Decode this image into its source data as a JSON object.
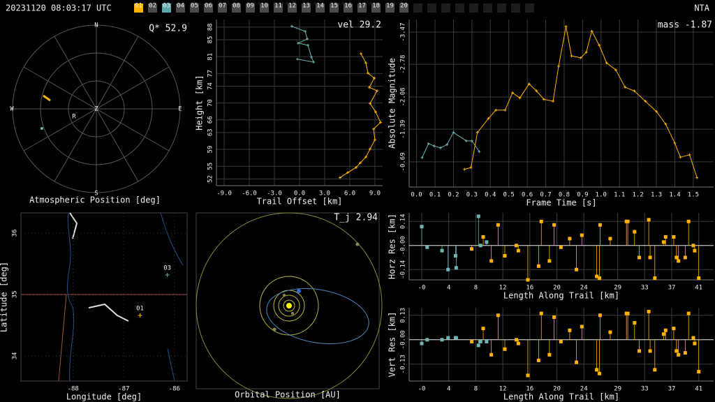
{
  "header": {
    "timestamp": "20231120 08:03:17 UTC",
    "stations": [
      "01",
      "02",
      "03",
      "04",
      "05",
      "06",
      "07",
      "08",
      "09",
      "10",
      "11",
      "12",
      "13",
      "14",
      "15",
      "16",
      "17",
      "18",
      "19",
      "20"
    ],
    "site": "NTA"
  },
  "chart_data": [
    {
      "type": "polar",
      "title": "Q* 52.9",
      "xlabel": "Atmospheric Position [deg]",
      "directions": [
        "N",
        "E",
        "S",
        "W"
      ],
      "zenith": "Z",
      "radiant": "R"
    },
    {
      "type": "line",
      "title": "vel 29.2",
      "xlabel": "Trail Offset [km]",
      "ylabel": "Height [km]",
      "grid": true,
      "xlim": [
        -9.92,
        9.92
      ],
      "ylim": [
        50.4,
        89.8
      ],
      "xticks": [
        {
          "value": -9,
          "label": "-9.0"
        },
        {
          "value": -6,
          "label": "-6.0"
        },
        {
          "value": -3,
          "label": "-3.0"
        },
        {
          "value": 0,
          "label": "0.0"
        },
        {
          "value": 3,
          "label": "3.0"
        },
        {
          "value": 6,
          "label": "6.0"
        },
        {
          "value": 9,
          "label": "9.0"
        }
      ],
      "yticks": [
        52,
        55,
        59,
        63,
        66,
        70,
        74,
        77,
        81,
        85,
        88
      ],
      "series": [
        {
          "color": "#6fb3b3",
          "x": [
            -0.92,
            0.67,
            0.92,
            -0.17,
            1.0,
            1.42,
            1.67,
            -0.25
          ],
          "values": [
            88.2,
            87.0,
            85.2,
            84.2,
            83.7,
            80.9,
            79.7,
            80.4
          ]
        },
        {
          "color": "#ffb300",
          "x": [
            7.33,
            7.92,
            8.17,
            8.92,
            8.33,
            9.25,
            8.42,
            9.08,
            9.67,
            8.83,
            9.0,
            8.42,
            7.92,
            7.25,
            6.75,
            5.75,
            4.83
          ],
          "values": [
            81.7,
            79.5,
            77.1,
            75.9,
            73.7,
            72.9,
            69.9,
            67.9,
            65.4,
            63.8,
            61.3,
            59.1,
            57.2,
            55.8,
            54.7,
            53.5,
            52.3
          ]
        }
      ]
    },
    {
      "type": "line",
      "title": "mass -1.87",
      "xlabel": "Frame Time [s]",
      "ylabel": "Absolute Magnitude",
      "grid": true,
      "xlim": [
        -0.04,
        1.61
      ],
      "ylim": [
        -0.15,
        -3.74
      ],
      "xticks": [
        {
          "value": 0,
          "label": "0.0"
        },
        0.1,
        0.2,
        0.3,
        0.4,
        0.5,
        0.6,
        0.7,
        0.8,
        0.9,
        {
          "value": 1,
          "label": "1.0"
        },
        1.1,
        1.2,
        1.3,
        1.4,
        1.5
      ],
      "yticks": [
        -3.47,
        -2.78,
        -2.08,
        -1.39,
        -0.69
      ],
      "series": [
        {
          "color": "#6fb3b3",
          "x": [
            0.03,
            0.065,
            0.095,
            0.13,
            0.165,
            0.2,
            0.27,
            0.3,
            0.34
          ],
          "values": [
            -0.78,
            -1.08,
            -1.03,
            -0.99,
            -1.06,
            -1.32,
            -1.14,
            -1.14,
            -0.91
          ]
        },
        {
          "color": "#ffb300",
          "x": [
            0.26,
            0.295,
            0.33,
            0.39,
            0.43,
            0.48,
            0.52,
            0.56,
            0.61,
            0.65,
            0.69,
            0.74,
            0.77,
            0.81,
            0.84,
            0.89,
            0.92,
            0.95,
            0.99,
            1.03,
            1.08,
            1.13,
            1.18,
            1.24,
            1.3,
            1.35,
            1.4,
            1.43,
            1.48,
            1.52
          ],
          "values": [
            -0.53,
            -0.57,
            -1.32,
            -1.62,
            -1.8,
            -1.8,
            -2.17,
            -2.06,
            -2.36,
            -2.21,
            -2.03,
            -1.99,
            -2.74,
            -3.59,
            -2.96,
            -2.92,
            -3.04,
            -3.49,
            -3.19,
            -2.81,
            -2.66,
            -2.29,
            -2.21,
            -1.99,
            -1.77,
            -1.5,
            -1.09,
            -0.79,
            -0.84,
            -0.35
          ]
        }
      ]
    },
    {
      "type": "map",
      "xlabel": "Longitude [deg]",
      "ylabel": "Latitude [deg]",
      "grid": true,
      "xlim": [
        -89.03,
        -85.75
      ],
      "ylim": [
        33.59,
        36.33
      ],
      "xticks": [
        -88,
        -87,
        -86
      ],
      "yticks": [
        34,
        35,
        36
      ],
      "stations": [
        {
          "label": "03",
          "lon": -86.14,
          "lat": 35.32
        },
        {
          "label": "01",
          "lon": -86.68,
          "lat": 34.66
        }
      ]
    },
    {
      "type": "orbit",
      "title": "T_j 2.94",
      "xlabel": "Orbital Position [AU]"
    },
    {
      "type": "stem",
      "xlabel": "Length Along Trail [km]",
      "ylabel": "Horz Res [km]",
      "grid": true,
      "xlim": [
        -1.86,
        43.2
      ],
      "ylim": [
        -0.2,
        0.19
      ],
      "xticks": [
        {
          "value": 0,
          "label": "-0"
        },
        4,
        8,
        12,
        16,
        20,
        24,
        29,
        33,
        37,
        41
      ],
      "yticks": [
        0.14,
        {
          "value": 0,
          "label": "-0.00"
        },
        -0.14
      ],
      "series": [
        {
          "color": "#6fb3b3",
          "x": [
            0.0,
            0.8,
            3.0,
            3.9,
            5.0,
            5.1,
            8.4,
            8.7,
            9.6
          ],
          "values": [
            0.11,
            -0.01,
            -0.03,
            -0.14,
            -0.06,
            -0.13,
            0.17,
            0.0,
            0.02
          ]
        },
        {
          "color": "#ffb300",
          "x": [
            7.4,
            9.1,
            10.3,
            11.3,
            12.3,
            14.0,
            14.3,
            15.7,
            17.3,
            17.7,
            18.9,
            19.6,
            20.6,
            21.9,
            22.9,
            23.7,
            25.9,
            26.3,
            26.4,
            27.9,
            30.3,
            30.5,
            31.5,
            32.2,
            33.6,
            33.8,
            34.5,
            35.8,
            36.1,
            37.3,
            37.7,
            38.0,
            39.0,
            39.5,
            40.2,
            40.4,
            41.0
          ],
          "values": [
            -0.02,
            0.05,
            -0.09,
            0.12,
            -0.06,
            0.0,
            -0.03,
            -0.2,
            -0.12,
            0.14,
            -0.09,
            0.12,
            -0.01,
            0.04,
            -0.14,
            0.06,
            -0.18,
            -0.19,
            0.12,
            0.04,
            0.14,
            0.14,
            0.08,
            -0.07,
            0.15,
            -0.07,
            -0.19,
            0.02,
            0.05,
            0.05,
            -0.07,
            -0.09,
            -0.07,
            0.14,
            0.0,
            -0.03,
            -0.19
          ]
        }
      ]
    },
    {
      "type": "stem",
      "xlabel": "Length Along Trail [km]",
      "ylabel": "Vert Res [km]",
      "grid": true,
      "xlim": [
        -1.86,
        43.2
      ],
      "ylim": [
        -0.22,
        0.17
      ],
      "xticks": [
        {
          "value": 0,
          "label": "-0"
        },
        4,
        8,
        12,
        16,
        20,
        24,
        29,
        33,
        37,
        41
      ],
      "yticks": [
        0.13,
        {
          "value": 0,
          "label": "-0.00"
        },
        -0.13
      ],
      "series": [
        {
          "color": "#6fb3b3",
          "x": [
            0.0,
            0.8,
            3.0,
            3.9,
            5.0,
            5.1,
            8.4,
            8.7,
            9.6
          ],
          "values": [
            -0.02,
            0.0,
            0.0,
            0.01,
            0.01,
            0.01,
            -0.03,
            -0.01,
            -0.01
          ]
        },
        {
          "color": "#ffb300",
          "x": [
            7.4,
            9.1,
            10.3,
            11.3,
            12.3,
            14.0,
            14.3,
            15.7,
            17.3,
            17.7,
            18.9,
            19.6,
            20.6,
            21.9,
            22.9,
            23.7,
            25.9,
            26.3,
            26.4,
            27.9,
            30.3,
            30.5,
            31.5,
            32.2,
            33.6,
            33.8,
            34.5,
            35.8,
            36.1,
            37.3,
            37.7,
            38.0,
            39.0,
            39.5,
            40.2,
            40.4,
            41.0
          ],
          "values": [
            -0.01,
            0.06,
            -0.08,
            0.13,
            -0.05,
            0.0,
            -0.02,
            -0.19,
            -0.11,
            0.14,
            -0.08,
            0.12,
            -0.01,
            0.05,
            -0.12,
            0.07,
            -0.16,
            -0.18,
            0.13,
            0.04,
            0.14,
            0.14,
            0.09,
            -0.06,
            0.15,
            -0.06,
            -0.16,
            0.03,
            0.05,
            0.06,
            -0.06,
            -0.08,
            -0.07,
            0.14,
            0.01,
            -0.02,
            -0.17
          ]
        }
      ]
    }
  ]
}
